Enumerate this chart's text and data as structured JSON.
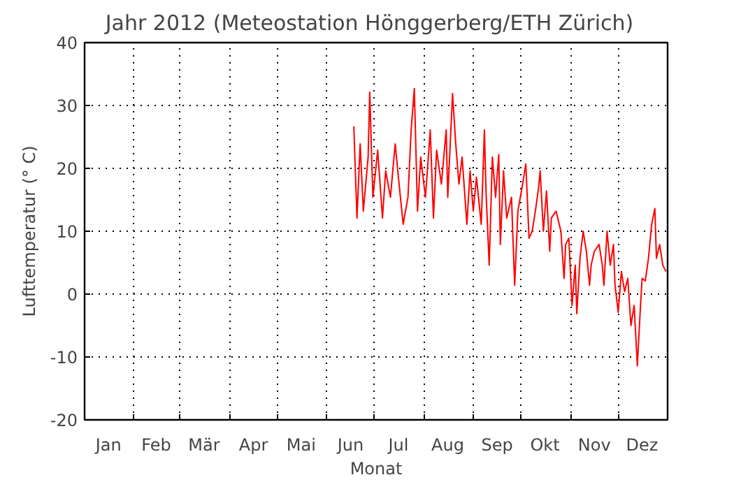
{
  "chart_data": {
    "type": "line",
    "title": "Jahr 2012   (Meteostation Hönggerberg/ETH Zürich)",
    "xlabel": "Monat",
    "ylabel": "Lufttemperatur (° C)",
    "xlim": [
      "2012-01-01",
      "2013-01-01"
    ],
    "ylim": [
      -20,
      40
    ],
    "yticks": [
      -20,
      -10,
      0,
      10,
      20,
      30,
      40
    ],
    "xticks": [
      {
        "value": "2012-01-16",
        "label": "Jan"
      },
      {
        "value": "2012-02-01",
        "label": null
      },
      {
        "value": "2012-02-15",
        "label": "Feb"
      },
      {
        "value": "2012-03-01",
        "label": null
      },
      {
        "value": "2012-03-16",
        "label": "Mär"
      },
      {
        "value": "2012-04-01",
        "label": null
      },
      {
        "value": "2012-04-16",
        "label": "Apr"
      },
      {
        "value": "2012-05-01",
        "label": null
      },
      {
        "value": "2012-05-16",
        "label": "Mai"
      },
      {
        "value": "2012-06-01",
        "label": null
      },
      {
        "value": "2012-06-16",
        "label": "Jun"
      },
      {
        "value": "2012-07-01",
        "label": null
      },
      {
        "value": "2012-07-16",
        "label": "Jul"
      },
      {
        "value": "2012-08-01",
        "label": null
      },
      {
        "value": "2012-08-16",
        "label": "Aug"
      },
      {
        "value": "2012-09-01",
        "label": null
      },
      {
        "value": "2012-09-16",
        "label": "Sep"
      },
      {
        "value": "2012-10-01",
        "label": null
      },
      {
        "value": "2012-10-16",
        "label": "Okt"
      },
      {
        "value": "2012-11-01",
        "label": null
      },
      {
        "value": "2012-11-16",
        "label": "Nov"
      },
      {
        "value": "2012-12-01",
        "label": null
      },
      {
        "value": "2012-12-16",
        "label": "Dez"
      }
    ],
    "grid": true,
    "line_style": "solid",
    "series": [
      {
        "color": "#ff0000",
        "x": [
          "2012-06-18",
          "2012-06-20",
          "2012-06-22",
          "2012-06-24",
          "2012-06-27",
          "2012-06-28",
          "2012-06-30",
          "2012-07-03",
          "2012-07-06",
          "2012-07-08",
          "2012-07-11",
          "2012-07-14",
          "2012-07-16",
          "2012-07-19",
          "2012-07-22",
          "2012-07-24",
          "2012-07-26",
          "2012-07-28",
          "2012-07-30",
          "2012-08-02",
          "2012-08-05",
          "2012-08-07",
          "2012-08-09",
          "2012-08-12",
          "2012-08-15",
          "2012-08-16",
          "2012-08-19",
          "2012-08-21",
          "2012-08-23",
          "2012-08-25",
          "2012-08-28",
          "2012-08-30",
          "2012-09-01",
          "2012-09-03",
          "2012-09-06",
          "2012-09-08",
          "2012-09-09",
          "2012-09-11",
          "2012-09-13",
          "2012-09-15",
          "2012-09-17",
          "2012-09-18",
          "2012-09-20",
          "2012-09-22",
          "2012-09-25",
          "2012-09-27",
          "2012-09-29",
          "2012-10-02",
          "2012-10-04",
          "2012-10-06",
          "2012-10-08",
          "2012-10-10",
          "2012-10-12",
          "2012-10-13",
          "2012-10-15",
          "2012-10-17",
          "2012-10-19",
          "2012-10-20",
          "2012-10-23",
          "2012-10-26",
          "2012-10-28",
          "2012-10-29",
          "2012-10-31",
          "2012-11-02",
          "2012-11-04",
          "2012-11-05",
          "2012-11-07",
          "2012-11-09",
          "2012-11-11",
          "2012-11-13",
          "2012-11-14",
          "2012-11-16",
          "2012-11-19",
          "2012-11-21",
          "2012-11-22",
          "2012-11-24",
          "2012-11-26",
          "2012-11-28",
          "2012-11-29",
          "2012-12-01",
          "2012-12-03",
          "2012-12-05",
          "2012-12-07",
          "2012-12-09",
          "2012-12-11",
          "2012-12-13",
          "2012-12-15",
          "2012-12-16",
          "2012-12-18",
          "2012-12-20",
          "2012-12-22",
          "2012-12-24",
          "2012-12-25",
          "2012-12-27",
          "2012-12-29",
          "2012-12-31"
        ],
        "values": [
          26.7,
          12.1,
          23.9,
          13.2,
          21.8,
          32.1,
          15.4,
          22.9,
          12.1,
          19.6,
          15.4,
          23.9,
          18.6,
          11.1,
          15.4,
          26.1,
          32.7,
          13.2,
          21.8,
          15.4,
          26.1,
          12.1,
          22.9,
          17.5,
          26.1,
          15.4,
          31.9,
          23.9,
          17.5,
          21.8,
          11.1,
          19.6,
          13.2,
          18.6,
          11.1,
          26.1,
          16.4,
          4.6,
          21.8,
          15.4,
          22.2,
          7.9,
          19.6,
          12.1,
          15.4,
          1.4,
          13.2,
          17.5,
          20.7,
          8.9,
          10.0,
          13.2,
          16.9,
          19.6,
          10.0,
          16.4,
          6.8,
          12.1,
          13.2,
          10.0,
          2.5,
          7.9,
          8.9,
          -1.8,
          4.6,
          -3.1,
          5.7,
          10.0,
          6.8,
          1.4,
          4.6,
          6.8,
          7.9,
          4.6,
          1.4,
          10.0,
          4.6,
          7.9,
          1.4,
          -2.9,
          3.6,
          0.4,
          2.5,
          -5.0,
          -1.8,
          -11.4,
          -1.8,
          2.5,
          2.1,
          5.7,
          11.1,
          13.6,
          5.7,
          7.9,
          4.6,
          3.6
        ]
      }
    ]
  }
}
